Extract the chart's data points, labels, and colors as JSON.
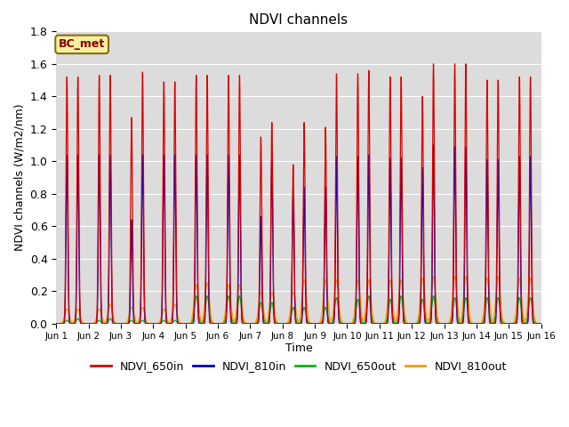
{
  "title": "NDVI channels",
  "ylabel": "NDVI channels (W/m2/nm)",
  "xlabel": "Time",
  "ylim": [
    0,
    1.8
  ],
  "xlim_days": [
    0,
    15
  ],
  "background_color": "#dcdcdc",
  "annotation_text": "BC_met",
  "annotation_bg": "#f5f0a0",
  "annotation_edge": "#8b6914",
  "colors": {
    "NDVI_650in": "#dd0000",
    "NDVI_810in": "#0000cc",
    "NDVI_650out": "#00bb00",
    "NDVI_810out": "#ff9900"
  },
  "tick_labels": [
    "Jun 1",
    "Jun 2",
    "Jun 3",
    "Jun 4",
    "Jun 5",
    "Jun 6",
    "Jun 7",
    "Jun 8",
    "Jun 9",
    "Jun 10",
    "Jun 11",
    "Jun 12",
    "Jun 13",
    "Jun 14",
    "Jun 15",
    "Jun 16"
  ],
  "peak1_heights_650in": [
    1.52,
    1.53,
    1.27,
    1.49,
    1.53,
    1.53,
    1.15,
    0.98,
    1.21,
    1.54,
    1.52,
    1.4,
    1.6,
    1.5,
    1.52
  ],
  "peak2_heights_650in": [
    1.52,
    1.53,
    1.55,
    1.49,
    1.53,
    1.53,
    1.24,
    1.24,
    1.54,
    1.56,
    1.52,
    1.6,
    1.6,
    1.5,
    1.52
  ],
  "peak1_heights_810in": [
    1.04,
    1.04,
    0.64,
    1.04,
    1.04,
    1.04,
    0.66,
    0.84,
    0.84,
    1.03,
    1.02,
    0.96,
    1.09,
    1.01,
    1.03
  ],
  "peak2_heights_810in": [
    1.04,
    1.04,
    1.04,
    1.04,
    1.04,
    1.04,
    1.04,
    0.84,
    1.03,
    1.04,
    1.02,
    1.1,
    1.09,
    1.01,
    1.03
  ],
  "peak1_heights_650out": [
    0.02,
    0.02,
    0.02,
    0.02,
    0.17,
    0.17,
    0.13,
    0.1,
    0.1,
    0.15,
    0.15,
    0.15,
    0.16,
    0.16,
    0.16
  ],
  "peak2_heights_650out": [
    0.03,
    0.03,
    0.02,
    0.02,
    0.17,
    0.17,
    0.13,
    0.1,
    0.16,
    0.17,
    0.17,
    0.17,
    0.16,
    0.16,
    0.16
  ],
  "peak1_heights_810out": [
    0.09,
    0.09,
    0.1,
    0.09,
    0.24,
    0.24,
    0.2,
    0.2,
    0.27,
    0.27,
    0.27,
    0.28,
    0.29,
    0.28,
    0.28
  ],
  "peak2_heights_810out": [
    0.09,
    0.12,
    0.1,
    0.12,
    0.25,
    0.24,
    0.2,
    0.27,
    0.27,
    0.27,
    0.27,
    0.29,
    0.29,
    0.29,
    0.28
  ],
  "yticks": [
    0.0,
    0.2,
    0.4,
    0.6,
    0.8,
    1.0,
    1.2,
    1.4,
    1.6,
    1.8
  ]
}
